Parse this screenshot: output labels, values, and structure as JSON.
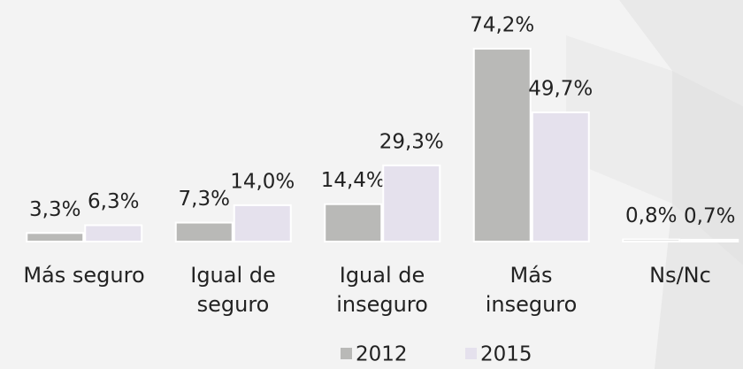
{
  "chart_data": {
    "type": "bar",
    "categories": [
      "Más seguro",
      "Igual de\nseguro",
      "Igual de\ninseguro",
      "Más\ninseguro",
      "Ns/Nc"
    ],
    "series": [
      {
        "name": "2012",
        "color": "#b9b9b7",
        "values": [
          3.3,
          7.3,
          14.4,
          74.2,
          0.8
        ],
        "value_labels": [
          "3,3%",
          "7,3%",
          "14,4%",
          "74,2%",
          "0,8%"
        ]
      },
      {
        "name": "2015",
        "color": "#e5e1ed",
        "values": [
          6.3,
          14.0,
          29.3,
          49.7,
          0.7
        ],
        "value_labels": [
          "6,3%",
          "14,0%",
          "29,3%",
          "49,7%",
          "0,7%"
        ]
      }
    ],
    "ylim": [
      0,
      80
    ],
    "legend": "bottom"
  }
}
